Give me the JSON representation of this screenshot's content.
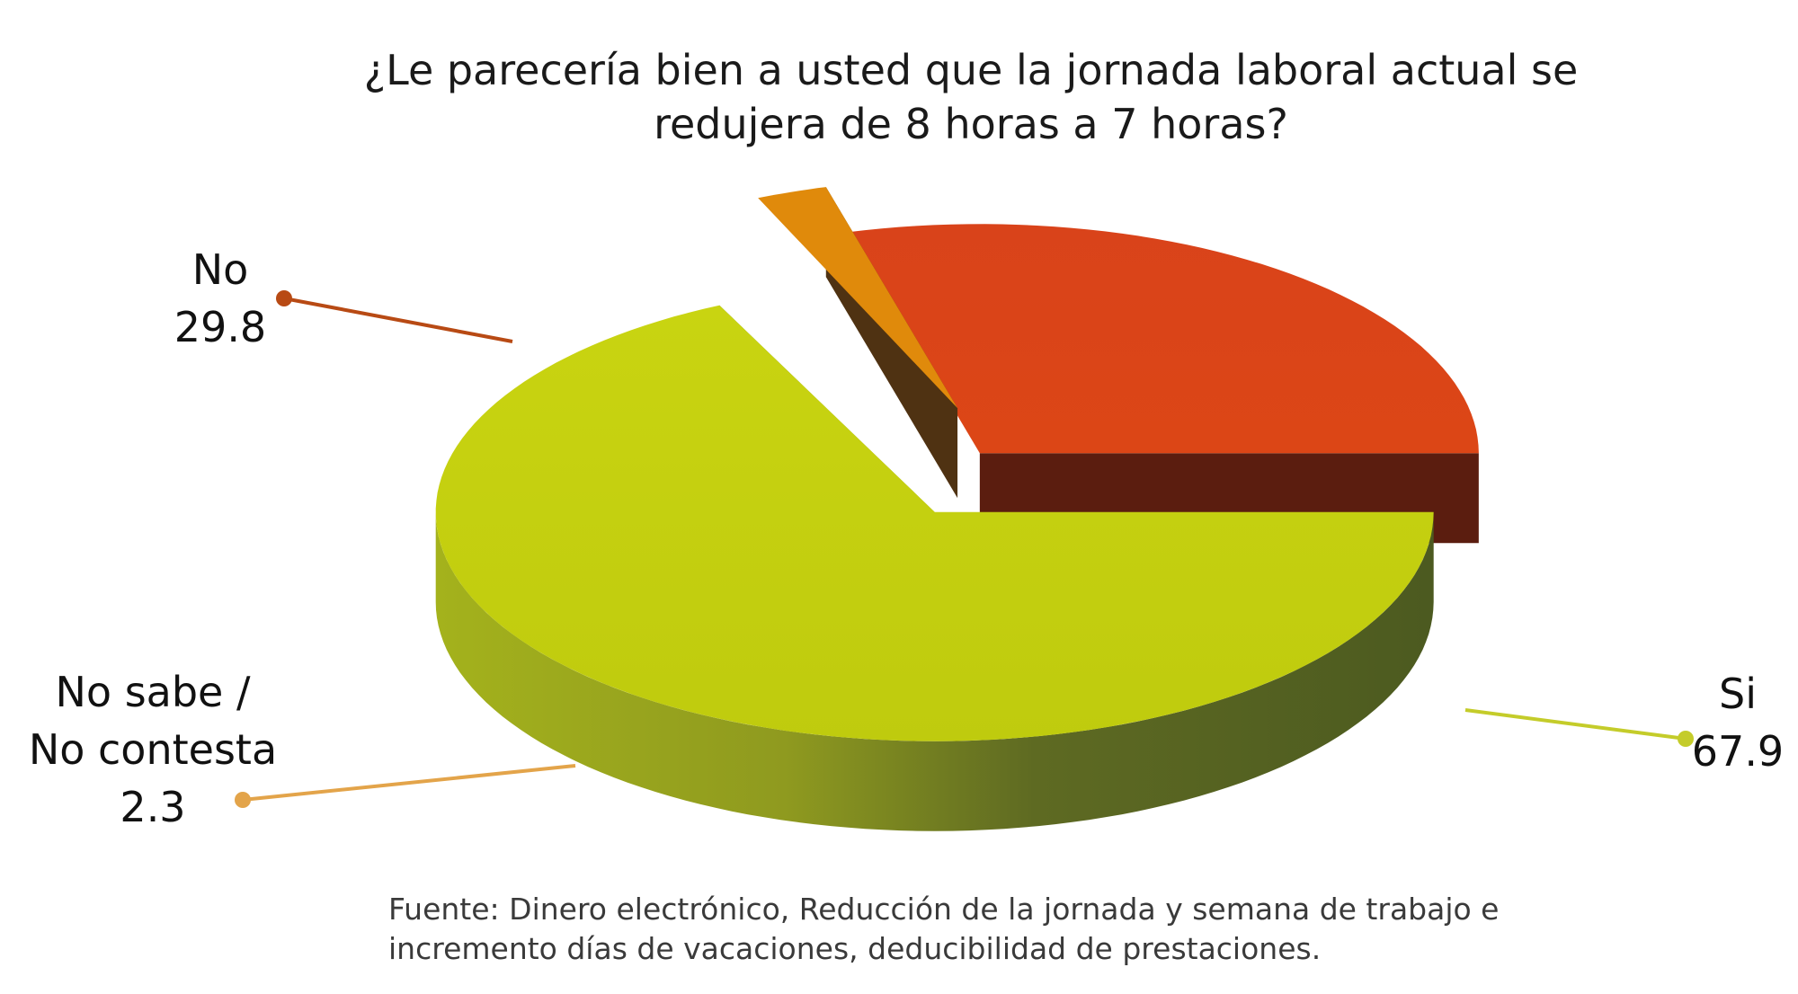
{
  "chart_data": {
    "type": "pie",
    "title_lines": [
      "¿Le parecería bien a usted que la jornada laboral actual se",
      "redujera de 8 horas a 7 horas?"
    ],
    "slices": [
      {
        "label": "Si",
        "value": 67.9,
        "value_text": "67.9",
        "color": "#c3cf0f",
        "exploded": true
      },
      {
        "label": "No",
        "value": 29.8,
        "value_text": "29.8",
        "color": "#dc4417",
        "exploded": false
      },
      {
        "label_lines": [
          "No sabe /",
          "No contesta"
        ],
        "value": 2.3,
        "value_text": "2.3",
        "color": "#e08a0b",
        "exploded": true
      }
    ],
    "style": "3d-exploded",
    "legend": "none"
  },
  "source_lines": [
    "Fuente: Dinero electrónico, Reducción de la jornada y semana de trabajo e",
    "incremento días de vacaciones, deducibilidad de prestaciones."
  ]
}
